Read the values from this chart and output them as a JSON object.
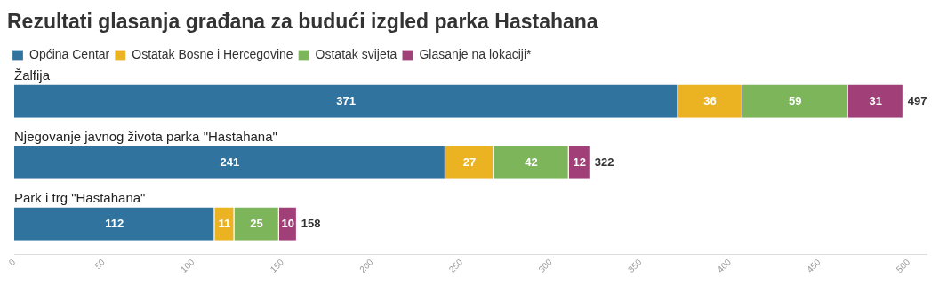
{
  "chart_data": {
    "type": "bar",
    "orientation": "horizontal",
    "stacked": true,
    "title": "Rezultati glasanja građana za budući izgled parka Hastahana",
    "categories": [
      "Žalfija",
      "Njegovanje javnog života parka \"Hastahana\"",
      "Park i trg \"Hastahana\""
    ],
    "series": [
      {
        "name": "Općina Centar",
        "color": "#31739f",
        "values": [
          371,
          241,
          112
        ]
      },
      {
        "name": "Ostatak Bosne i Hercegovine",
        "color": "#ebb222",
        "values": [
          36,
          27,
          11
        ]
      },
      {
        "name": "Ostatak svijeta",
        "color": "#7db55a",
        "values": [
          59,
          42,
          25
        ]
      },
      {
        "name": "Glasanje na lokaciji*",
        "color": "#a03f78",
        "values": [
          31,
          12,
          10
        ]
      }
    ],
    "totals": [
      "497",
      "322",
      "158"
    ],
    "data_labels": true,
    "legend": "top left",
    "grid": false,
    "xlim": [
      0,
      510
    ],
    "xticks": [
      0,
      50,
      100,
      150,
      200,
      250,
      300,
      350,
      400,
      450,
      500
    ]
  }
}
